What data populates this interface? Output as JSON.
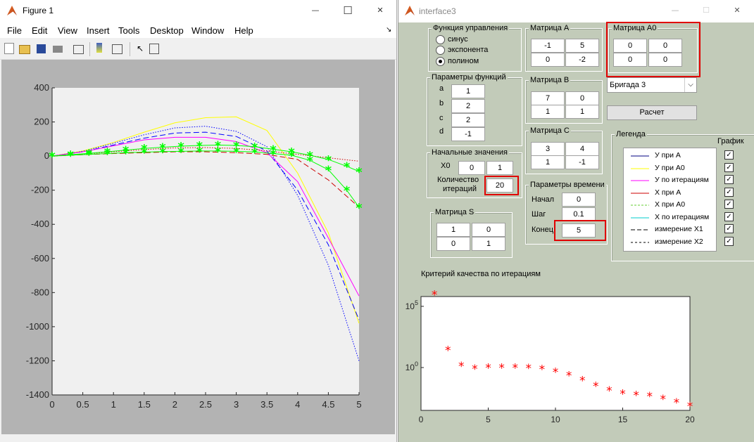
{
  "fig1": {
    "title": "Figure 1",
    "menu": [
      "File",
      "Edit",
      "View",
      "Insert",
      "Tools",
      "Desktop",
      "Window",
      "Help"
    ],
    "min_glyph": "—",
    "max_glyph": "☐",
    "close_glyph": "✕"
  },
  "gui": {
    "title": "interface3",
    "control_panel": {
      "title": "Функция управления",
      "options": [
        "синус",
        "экспонента",
        "полином"
      ],
      "selected": "полином"
    },
    "params_panel": {
      "title": "Параметры функций",
      "labels": [
        "a",
        "b",
        "c",
        "d"
      ],
      "values": [
        "1",
        "2",
        "2",
        "-1"
      ]
    },
    "init_panel": {
      "title": "Начальные значения",
      "x0_label": "X0",
      "x0": [
        "0",
        "1"
      ],
      "iter_label_1": "Количество",
      "iter_label_2": "итераций",
      "iter_value": "20"
    },
    "matrix_s": {
      "title": "Матрица S",
      "values": [
        "1",
        "0",
        "0",
        "1"
      ]
    },
    "matrix_a": {
      "title": "Матрица A",
      "values": [
        "-1",
        "5",
        "0",
        "-2"
      ]
    },
    "matrix_a0": {
      "title": "Матрица A0",
      "values": [
        "0",
        "0",
        "0",
        "0"
      ]
    },
    "matrix_b": {
      "title": "Матрица B",
      "values": [
        "7",
        "0",
        "1",
        "1"
      ]
    },
    "matrix_c": {
      "title": "Матрица C",
      "values": [
        "3",
        "4",
        "1",
        "-1"
      ]
    },
    "time_panel": {
      "title": "Параметры времени",
      "labels": [
        "Начал",
        "Шаг",
        "Конец"
      ],
      "values": [
        "0",
        "0.1",
        "5"
      ]
    },
    "brigade_select": "Бригада 3",
    "calc_button": "Расчет",
    "legend_panel": {
      "title": "Легенда",
      "graph_label": "График",
      "items": [
        "У при А",
        "У при А0",
        "У по итерациям",
        "Х при А",
        "Х при А0",
        "Х по итерациям",
        "измерение Х1",
        "измерение Х2"
      ]
    },
    "quality_title": "Критерий качества по итерациям"
  },
  "chart_data": [
    {
      "type": "line",
      "title": "",
      "xlabel": "",
      "ylabel": "",
      "xlim": [
        0,
        5
      ],
      "ylim": [
        -1400,
        400
      ],
      "xticks": [
        "0",
        "0.5",
        "1",
        "1.5",
        "2",
        "2.5",
        "3",
        "3.5",
        "4",
        "4.5",
        "5"
      ],
      "yticks": [
        "400",
        "200",
        "0",
        "-200",
        "-400",
        "-600",
        "-800",
        "-1000",
        "-1200",
        "-1400"
      ],
      "grid": false,
      "series": [
        {
          "color": "#ffff00",
          "style": "solid",
          "x": [
            0,
            0.5,
            1,
            1.5,
            2,
            2.5,
            3,
            3.5,
            4,
            4.5,
            5
          ],
          "y": [
            0,
            30,
            80,
            140,
            195,
            225,
            230,
            150,
            -100,
            -450,
            -980
          ]
        },
        {
          "color": "#0000ff",
          "style": "dashed",
          "x": [
            0,
            0.5,
            1,
            1.5,
            2,
            2.5,
            3,
            3.5,
            4,
            4.5,
            5
          ],
          "y": [
            0,
            25,
            65,
            105,
            135,
            140,
            115,
            30,
            -200,
            -520,
            -960
          ]
        },
        {
          "color": "#0000ff",
          "style": "dotted",
          "x": [
            0,
            0.5,
            1,
            1.5,
            2,
            2.5,
            3,
            3.5,
            4,
            4.5,
            5
          ],
          "y": [
            0,
            28,
            75,
            125,
            165,
            175,
            145,
            55,
            -230,
            -640,
            -1200
          ]
        },
        {
          "color": "#ff00ff",
          "style": "solid",
          "x": [
            0,
            0.5,
            1,
            1.5,
            2,
            2.5,
            3,
            3.5,
            4,
            4.5,
            5
          ],
          "y": [
            0,
            25,
            60,
            95,
            110,
            110,
            85,
            20,
            -150,
            -480,
            -820
          ]
        },
        {
          "color": "#cc0000",
          "style": "dashed",
          "x": [
            0,
            0.5,
            1,
            1.5,
            2,
            2.5,
            3,
            3.5,
            4,
            4.5,
            5
          ],
          "y": [
            0,
            8,
            15,
            20,
            25,
            25,
            20,
            10,
            -20,
            -140,
            -300
          ]
        },
        {
          "color": "#cc0000",
          "style": "dotted",
          "x": [
            0,
            0.5,
            1,
            1.5,
            2,
            2.5,
            3,
            3.5,
            4,
            4.5,
            5
          ],
          "y": [
            0,
            12,
            25,
            38,
            48,
            50,
            45,
            30,
            10,
            -10,
            -30
          ]
        },
        {
          "color": "#00ff00",
          "style": "star",
          "x": [
            0,
            0.3,
            0.6,
            0.9,
            1.2,
            1.5,
            1.8,
            2.1,
            2.4,
            2.7,
            3.0,
            3.3,
            3.6,
            3.9,
            4.2,
            4.5,
            4.8,
            5.0
          ],
          "y": [
            0,
            5,
            10,
            15,
            20,
            23,
            26,
            28,
            30,
            30,
            28,
            24,
            15,
            5,
            -25,
            -80,
            -200,
            -300
          ]
        },
        {
          "color": "#00ff00",
          "style": "star",
          "x": [
            0,
            0.3,
            0.6,
            0.9,
            1.2,
            1.5,
            1.8,
            2.1,
            2.4,
            2.7,
            3.0,
            3.3,
            3.6,
            3.9,
            4.2,
            4.5,
            4.8,
            5.0
          ],
          "y": [
            0,
            8,
            16,
            25,
            35,
            45,
            52,
            58,
            62,
            65,
            62,
            55,
            40,
            25,
            5,
            -20,
            -60,
            -90
          ]
        }
      ]
    },
    {
      "type": "scatter",
      "title": "Критерий качества по итерациям",
      "xlim": [
        0,
        20
      ],
      "yscale": "log",
      "xticks": [
        "0",
        "5",
        "10",
        "15",
        "20"
      ],
      "yticks": [
        "10^5",
        "10^0"
      ],
      "series": [
        {
          "color": "#ff0000",
          "marker": "star",
          "x": [
            1,
            2,
            3,
            4,
            5,
            6,
            7,
            8,
            9,
            10,
            11,
            12,
            13,
            14,
            15,
            16,
            17,
            18,
            19,
            20
          ],
          "y": [
            1000000.0,
            30,
            1.5,
            0.9,
            1.1,
            1.1,
            1.1,
            1.0,
            0.8,
            0.5,
            0.25,
            0.1,
            0.035,
            0.015,
            0.008,
            0.006,
            0.005,
            0.003,
            0.0015,
            0.0008
          ]
        }
      ]
    }
  ]
}
